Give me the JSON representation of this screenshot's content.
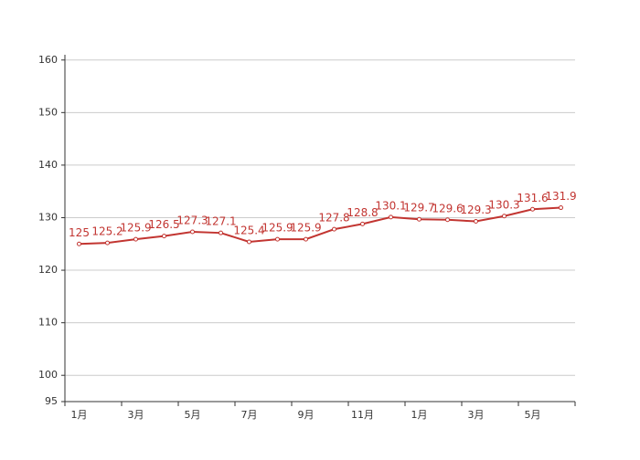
{
  "chart_data": {
    "type": "line",
    "categories": [
      "1月",
      null,
      "3月",
      null,
      "5月",
      null,
      "7月",
      null,
      "9月",
      null,
      "11月",
      null,
      "1月",
      null,
      "3月",
      null,
      "5月",
      null
    ],
    "series": [
      {
        "color": "#c23531",
        "values": [
          125,
          125.2,
          125.9,
          126.5,
          127.3,
          127.1,
          125.4,
          125.9,
          125.9,
          127.8,
          128.8,
          130.1,
          129.7,
          129.6,
          129.3,
          130.3,
          131.6,
          131.9
        ]
      }
    ],
    "ylim": [
      95,
      161
    ],
    "yticks": [
      95,
      100,
      110,
      120,
      130,
      140,
      150,
      160
    ],
    "grid": true
  }
}
